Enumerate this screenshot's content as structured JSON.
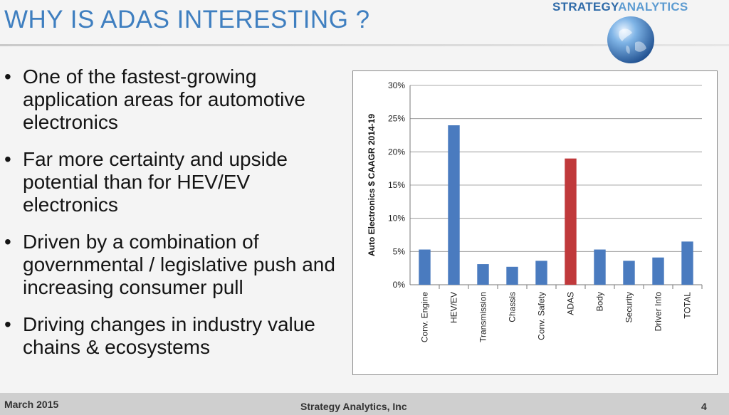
{
  "slide": {
    "title": "WHY IS ADAS INTERESTING ?",
    "brand_part1": "STRATEGY",
    "brand_part2": "ANALYTICS",
    "bullets": [
      "One of the fastest-growing application areas for automotive electronics",
      "Far more certainty and upside potential than for HEV/EV electronics",
      "Driven by a combination of governmental / legislative push and increasing consumer pull",
      "Driving changes in industry value chains & ecosystems"
    ]
  },
  "footer": {
    "date": "March 2015",
    "company": "Strategy Analytics, Inc",
    "page": "4"
  },
  "colors": {
    "title": "#3f7fc0",
    "bar_default": "#4a7bbf",
    "bar_highlight": "#c0393b"
  },
  "chart_data": {
    "type": "bar",
    "title": "",
    "xlabel": "",
    "ylabel": "Auto Electronics $ CAAGR 2014-19",
    "ylim": [
      0,
      30
    ],
    "yticks": [
      "0%",
      "5%",
      "10%",
      "15%",
      "20%",
      "25%",
      "30%"
    ],
    "grid": true,
    "categories": [
      "Conv. Engine",
      "HEV/EV",
      "Transmission",
      "Chassis",
      "Conv. Safety",
      "ADAS",
      "Body",
      "Security",
      "Driver Info",
      "TOTAL"
    ],
    "values": [
      5.3,
      24.0,
      3.1,
      2.7,
      3.6,
      19.0,
      5.3,
      3.6,
      4.1,
      6.5
    ],
    "highlight_category": "ADAS"
  }
}
